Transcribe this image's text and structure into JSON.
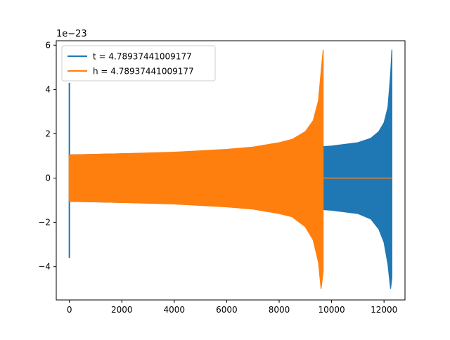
{
  "chart_data": {
    "type": "area",
    "offset_text": "1e−23",
    "xlim": [
      -500,
      12800
    ],
    "ylim": [
      -5.5,
      6.2
    ],
    "x_ticks": [
      {
        "value": 0,
        "label": "0"
      },
      {
        "value": 2000,
        "label": "2000"
      },
      {
        "value": 4000,
        "label": "4000"
      },
      {
        "value": 6000,
        "label": "6000"
      },
      {
        "value": 8000,
        "label": "8000"
      },
      {
        "value": 10000,
        "label": "10000"
      },
      {
        "value": 12000,
        "label": "12000"
      }
    ],
    "y_ticks": [
      {
        "value": -4,
        "label": "−4"
      },
      {
        "value": -2,
        "label": "−2"
      },
      {
        "value": 0,
        "label": "0"
      },
      {
        "value": 2,
        "label": "2"
      },
      {
        "value": 4,
        "label": "4"
      },
      {
        "value": 6,
        "label": "6"
      }
    ],
    "legend": {
      "position": "upper left"
    },
    "series": [
      {
        "name": "t = 4.78937441009177",
        "color": "#1f77b4",
        "spike": {
          "x": 0,
          "ymax": 4.3,
          "ymin": -3.6
        },
        "envelope": {
          "x": [
            0,
            500,
            2000,
            4000,
            6000,
            8000,
            9000,
            10000,
            11000,
            11500,
            11800,
            12000,
            12150,
            12250,
            12300
          ],
          "upper": [
            1.05,
            1.06,
            1.1,
            1.15,
            1.22,
            1.33,
            1.37,
            1.45,
            1.6,
            1.8,
            2.1,
            2.5,
            3.2,
            4.7,
            5.8
          ],
          "lower": [
            -1.05,
            -1.06,
            -1.1,
            -1.15,
            -1.22,
            -1.33,
            -1.37,
            -1.45,
            -1.6,
            -1.85,
            -2.3,
            -2.9,
            -3.9,
            -5.0,
            -4.5
          ]
        },
        "tail": {
          "x": [],
          "y": []
        }
      },
      {
        "name": "h = 4.78937441009177",
        "color": "#ff7f0e",
        "spike": {
          "x": 0,
          "ymax": 1.0,
          "ymin": -1.0
        },
        "envelope": {
          "x": [
            0,
            500,
            2000,
            4000,
            6000,
            7000,
            8000,
            8500,
            9000,
            9300,
            9500,
            9600,
            9680
          ],
          "upper": [
            1.05,
            1.06,
            1.1,
            1.17,
            1.3,
            1.4,
            1.6,
            1.75,
            2.1,
            2.6,
            3.5,
            4.8,
            5.8
          ],
          "lower": [
            -1.05,
            -1.06,
            -1.1,
            -1.17,
            -1.3,
            -1.4,
            -1.6,
            -1.75,
            -2.2,
            -2.8,
            -3.8,
            -5.0,
            -4.2
          ]
        },
        "tail": {
          "x": [
            9680,
            12300
          ],
          "y": [
            0,
            0
          ]
        }
      }
    ]
  }
}
